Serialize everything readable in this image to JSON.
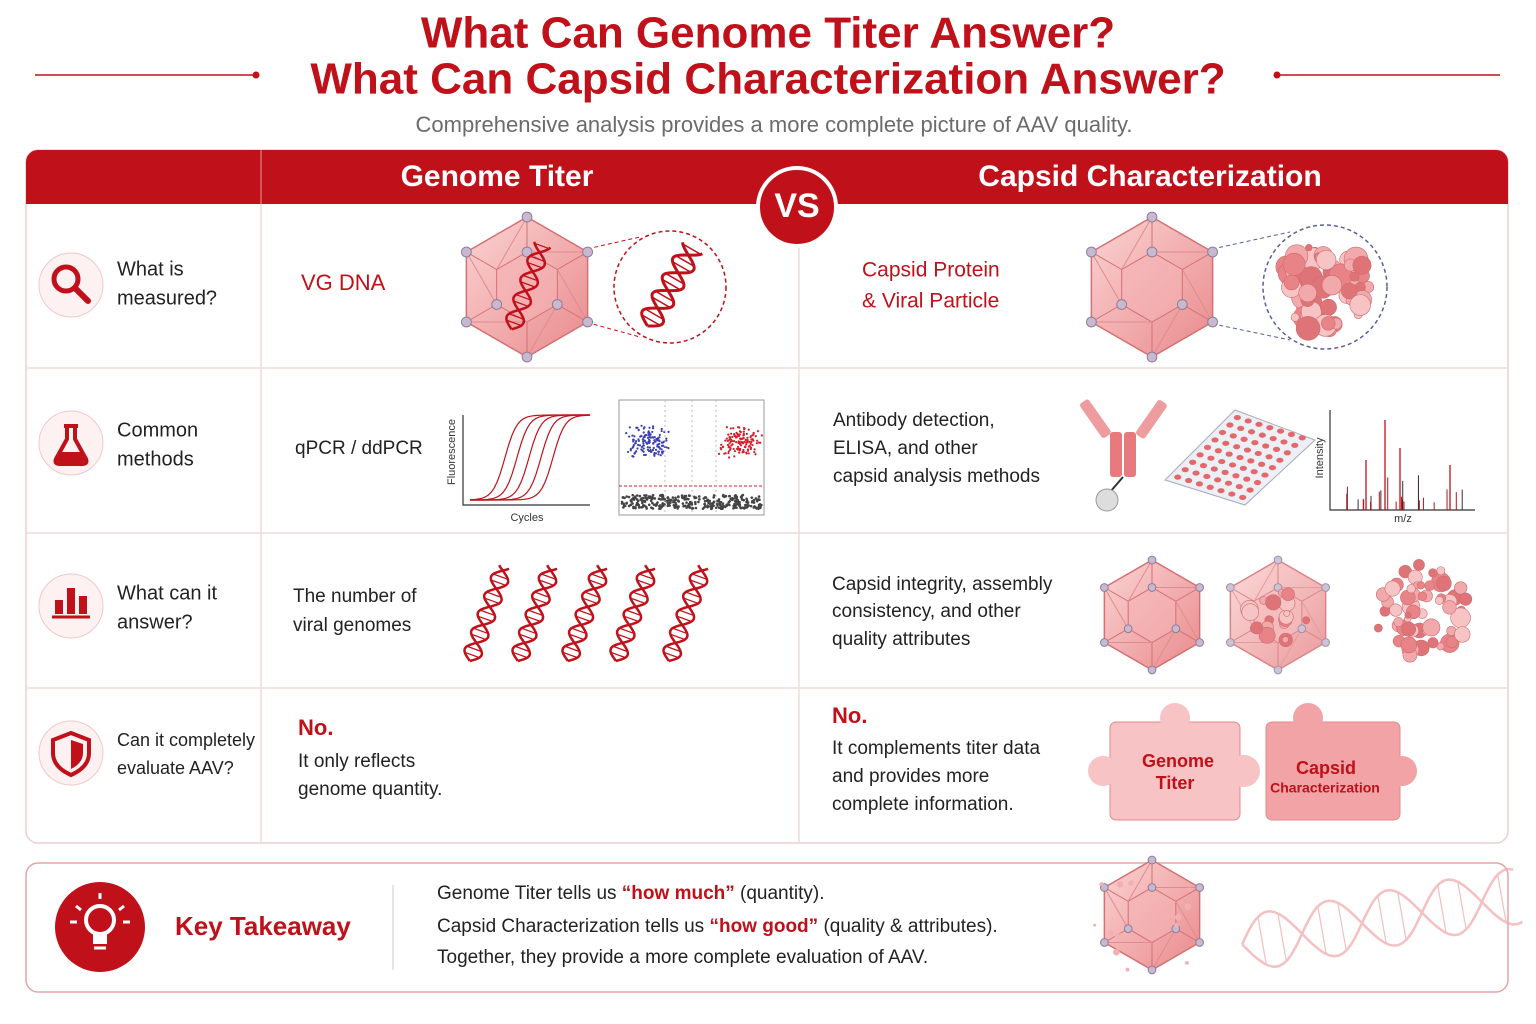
{
  "header": {
    "title_lines": [
      "What Can Genome Titer Answer?",
      "What Can Capsid Characterization Answer?"
    ],
    "subtitle": "Comprehensive analysis provides a more complete picture of AAV quality."
  },
  "table": {
    "columns": [
      "Genome Titer",
      "Capsid Characterization"
    ],
    "vs": "VS",
    "rows": [
      {
        "label_lines": [
          "What is",
          "measured?"
        ],
        "genome_titer_lines": [
          "VG DNA"
        ],
        "capsid_lines": [
          "Capsid Protein",
          "& Viral Particle"
        ]
      },
      {
        "label_lines": [
          "Common",
          "methods"
        ],
        "genome_titer_lines": [
          "qPCR / ddPCR"
        ],
        "capsid_lines": [
          "Antibody detection,",
          "ELISA, and other",
          "capsid analysis methods"
        ]
      },
      {
        "label_lines": [
          "What can it",
          "answer?"
        ],
        "genome_titer_lines": [
          "The number of",
          "viral genomes"
        ],
        "capsid_lines": [
          "Capsid integrity, assembly",
          "consistency, and other",
          "quality attributes"
        ]
      },
      {
        "label_lines": [
          "Can it completely",
          "evaluate AAV?"
        ],
        "genome_titer_answer": "No.",
        "genome_titer_lines": [
          "It only reflects",
          "genome quantity."
        ],
        "capsid_answer": "No.",
        "capsid_lines": [
          "It complements titer data",
          "and provides more",
          "complete information."
        ]
      }
    ]
  },
  "illustrations": {
    "qpcr_y_label": "Fluorescence",
    "qpcr_x_label": "Cycles",
    "ms_y_label": "Intensity",
    "ms_x_label": "m/z",
    "puzzle_left_lines": [
      "Genome",
      "Titer"
    ],
    "puzzle_right_lines": [
      "Capsid",
      "Characterization"
    ]
  },
  "takeaway": {
    "heading": "Key Takeaway",
    "lines": [
      [
        "Genome Titer tells us ",
        "“how much”",
        " (quantity)."
      ],
      [
        "Capsid Characterization tells us ",
        "“how good”",
        " (quality & attributes)."
      ],
      [
        "Together, they provide a more complete evaluation of AAV."
      ]
    ]
  }
}
